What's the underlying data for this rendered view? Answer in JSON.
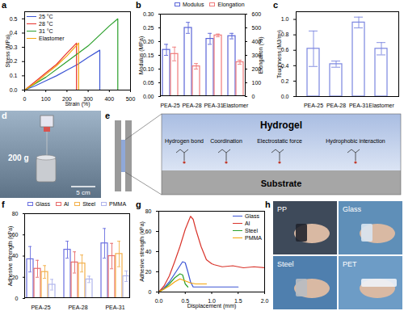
{
  "chart_data": [
    {
      "panel": "a",
      "type": "line",
      "xlabel": "Strain (%)",
      "ylabel": "Stress (MPa)",
      "xlim": [
        0,
        500
      ],
      "xticks": [
        0,
        100,
        200,
        300,
        400,
        500
      ],
      "ylim": [
        0,
        0.55
      ],
      "yticks": [
        {
          "value": 0,
          "label": "0.0"
        },
        0.1,
        0.2,
        0.3,
        0.4,
        0.5
      ],
      "legend": "top-left",
      "series": [
        {
          "name": "25 °C",
          "color": "#3c55d4",
          "x": [
            0,
            50,
            100,
            150,
            200,
            250,
            300,
            355,
            355
          ],
          "values": [
            0,
            0.03,
            0.065,
            0.1,
            0.14,
            0.18,
            0.23,
            0.28,
            0
          ]
        },
        {
          "name": "28 °C",
          "color": "#e8312b",
          "x": [
            0,
            50,
            100,
            150,
            200,
            245,
            245
          ],
          "values": [
            0,
            0.06,
            0.12,
            0.18,
            0.26,
            0.33,
            0
          ]
        },
        {
          "name": "31 °C",
          "color": "#2ca02c",
          "x": [
            0,
            100,
            200,
            300,
            400,
            440,
            440
          ],
          "values": [
            0,
            0.09,
            0.2,
            0.31,
            0.45,
            0.5,
            0
          ]
        },
        {
          "name": "Elastomer",
          "color": "#f5a30a",
          "x": [
            0,
            50,
            100,
            150,
            200,
            255,
            255
          ],
          "values": [
            0,
            0.05,
            0.11,
            0.17,
            0.24,
            0.33,
            0
          ]
        }
      ]
    },
    {
      "panel": "b",
      "type": "bar",
      "ylabel": "Modulus (MPa)",
      "y2label": "Elongation (%)",
      "categories": [
        "PEA-25",
        "PEA-28",
        "PEA-31",
        "Elastomer"
      ],
      "ylim": [
        0,
        0.3
      ],
      "yticks": [
        {
          "value": 0,
          "label": "0.00"
        },
        0.05,
        {
          "value": 0.1,
          "label": "0.10"
        },
        0.15,
        {
          "value": 0.2,
          "label": "0.20"
        },
        0.25,
        {
          "value": 0.3,
          "label": "0.30"
        }
      ],
      "y2lim": [
        0,
        600
      ],
      "y2ticks": [
        0,
        100,
        200,
        300,
        400,
        500,
        600
      ],
      "legend": "top",
      "series": [
        {
          "name": "Modulus",
          "color": "#5a64d8",
          "values": [
            0.17,
            0.25,
            0.21,
            0.22
          ],
          "errors": [
            0.02,
            0.02,
            0.02,
            0.01
          ]
        },
        {
          "name": "Elongation",
          "color": "#f07a7a",
          "axis": "y2",
          "values": [
            310,
            220,
            445,
            250
          ],
          "errors": [
            50,
            20,
            10,
            15
          ]
        }
      ]
    },
    {
      "panel": "c",
      "type": "bar",
      "ylabel": "Toughness (MJ/m³)",
      "categories": [
        "PEA-25",
        "PEA-28",
        "PEA-31",
        "Elastomer"
      ],
      "ylim": [
        0,
        1.1
      ],
      "yticks": [
        {
          "value": 0,
          "label": "0.0"
        },
        0.2,
        0.4,
        0.6,
        0.8,
        {
          "value": 1,
          "label": "1.0"
        }
      ],
      "color": "#7b86e0",
      "values": [
        0.62,
        0.42,
        0.96,
        0.62
      ],
      "errors": [
        0.23,
        0.04,
        0.07,
        0.08
      ]
    },
    {
      "panel": "f",
      "type": "bar",
      "ylabel": "Adhesive strength (kPa)",
      "categories": [
        "PEA-25",
        "PEA-28",
        "PEA-31"
      ],
      "ylim": [
        0,
        80
      ],
      "yticks": [
        0,
        20,
        40,
        60,
        80
      ],
      "legend": "top",
      "series": [
        {
          "name": "Glass",
          "color": "#6a6fe0",
          "values": [
            37,
            46,
            52
          ],
          "errors": [
            12,
            8,
            14
          ]
        },
        {
          "name": "Al",
          "color": "#e86a6a",
          "values": [
            28,
            34,
            40
          ],
          "errors": [
            8,
            10,
            12
          ]
        },
        {
          "name": "Steel",
          "color": "#f3b04a",
          "values": [
            25,
            33,
            42
          ],
          "errors": [
            6,
            8,
            12
          ]
        },
        {
          "name": "PMMA",
          "color": "#b0b4ec",
          "values": [
            13,
            18,
            21
          ],
          "errors": [
            5,
            3,
            5
          ]
        }
      ]
    },
    {
      "panel": "g",
      "type": "line",
      "xlabel": "Displacement (mm)",
      "ylabel": "Adhesive strength (kPa)",
      "xlim": [
        0,
        2
      ],
      "xticks": [
        {
          "value": 0,
          "label": "0.0"
        },
        0.5,
        {
          "value": 1,
          "label": "1.0"
        },
        1.5,
        {
          "value": 2,
          "label": "2.0"
        }
      ],
      "ylim": [
        0,
        80
      ],
      "yticks": [
        0,
        20,
        40,
        60,
        80
      ],
      "legend": "top-right",
      "series": [
        {
          "name": "Glass",
          "color": "#3c55d4",
          "x": [
            0,
            0.1,
            0.2,
            0.3,
            0.4,
            0.45,
            0.5,
            0.55,
            0.6,
            0.65,
            0.8,
            1.0,
            1.2,
            1.5
          ],
          "values": [
            0,
            4,
            10,
            18,
            26,
            30,
            29,
            20,
            10,
            5,
            5,
            5,
            5,
            5
          ]
        },
        {
          "name": "Al",
          "color": "#d9342b",
          "x": [
            0,
            0.1,
            0.2,
            0.3,
            0.4,
            0.5,
            0.6,
            0.65,
            0.7,
            0.8,
            0.9,
            1.0,
            1.05,
            1.2,
            1.4,
            1.6,
            1.8,
            2.0
          ],
          "values": [
            0,
            6,
            16,
            30,
            45,
            62,
            75,
            72,
            62,
            45,
            32,
            28,
            27,
            25,
            26,
            24,
            25,
            24
          ]
        },
        {
          "name": "Steel",
          "color": "#2ca02c",
          "x": [
            0,
            0.1,
            0.2,
            0.3,
            0.4,
            0.45,
            0.5,
            0.55
          ],
          "values": [
            0,
            3,
            8,
            14,
            18,
            17,
            8,
            5
          ]
        },
        {
          "name": "PMMA",
          "color": "#f5a30a",
          "x": [
            0,
            0.1,
            0.2,
            0.3,
            0.4,
            0.5,
            0.6,
            0.7,
            0.8,
            0.9
          ],
          "values": [
            0,
            3,
            6,
            10,
            13,
            11,
            9,
            8,
            8,
            8
          ]
        }
      ]
    }
  ],
  "photos": [
    {
      "panel": "d",
      "labels": [
        "200 g",
        "5 cm"
      ]
    },
    {
      "panel": "h",
      "labels": [
        "PP",
        "Glass",
        "Steel",
        "PET"
      ]
    }
  ],
  "diagram": {
    "panel": "e",
    "layers": [
      "Hydrogel",
      "Substrate"
    ],
    "interactions": [
      "Hydrogen bond",
      "Coordination",
      "Electrostatic force",
      "Hydrophobic interaction"
    ]
  }
}
